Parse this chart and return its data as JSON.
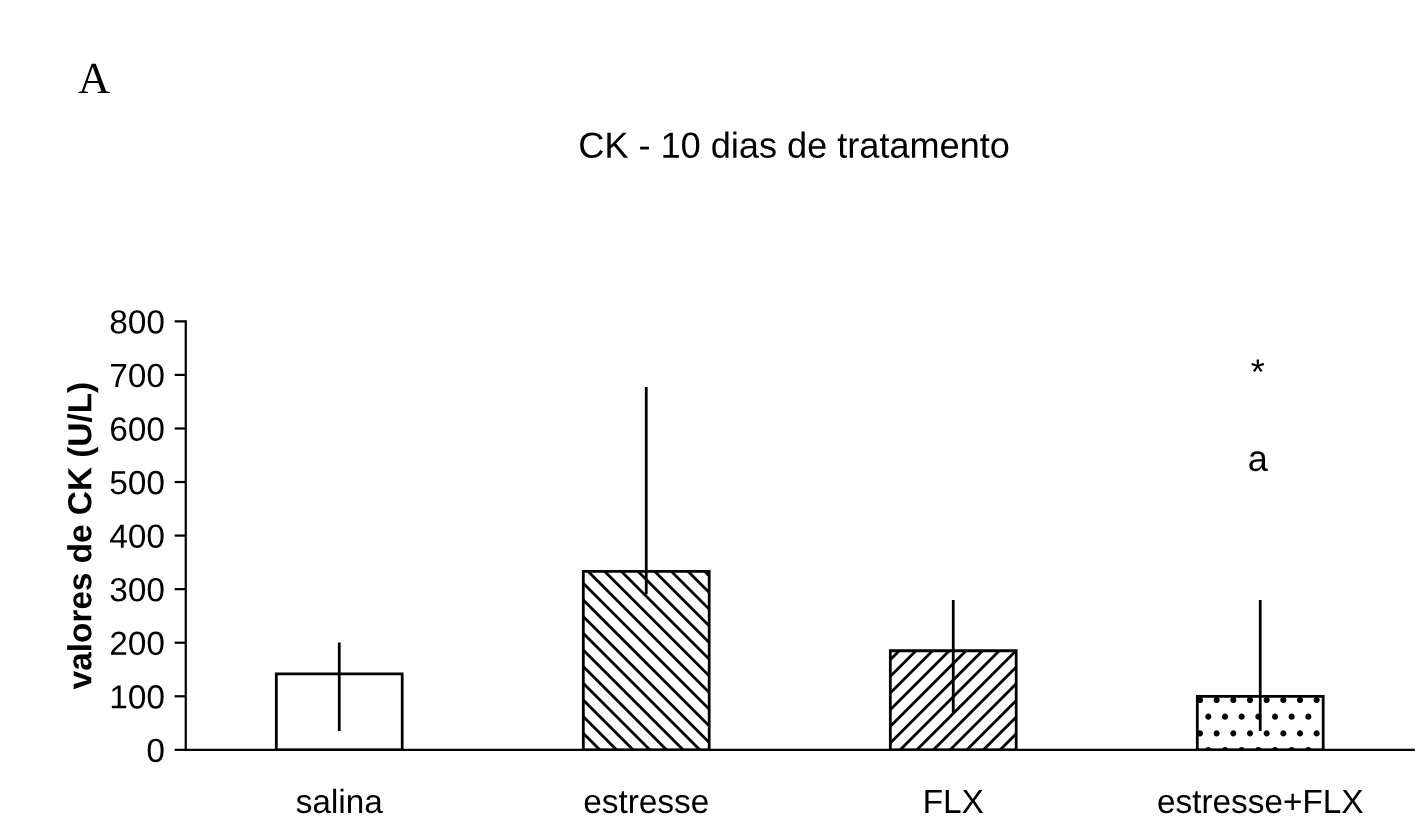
{
  "chart_data": {
    "type": "bar",
    "title": "CK - 10 dias de tratamento",
    "ylabel": "valores de CK (U/L)",
    "categories": [
      "salina",
      "estresse",
      "FLX",
      "estresse+FLX"
    ],
    "values": [
      142,
      333,
      185,
      100
    ],
    "errors": [
      [
        38,
        198
      ],
      [
        293,
        675
      ],
      [
        72,
        277
      ],
      [
        38,
        277
      ]
    ],
    "colors": [
      "#ffffff",
      "#000000",
      "#000000",
      "#000000"
    ],
    "ylim": [
      0,
      800
    ],
    "yticks": [
      0,
      100,
      200,
      300,
      400,
      500,
      600,
      700,
      800
    ],
    "grid": false,
    "legend": false,
    "annotations": [
      "A",
      "a",
      "*"
    ]
  }
}
